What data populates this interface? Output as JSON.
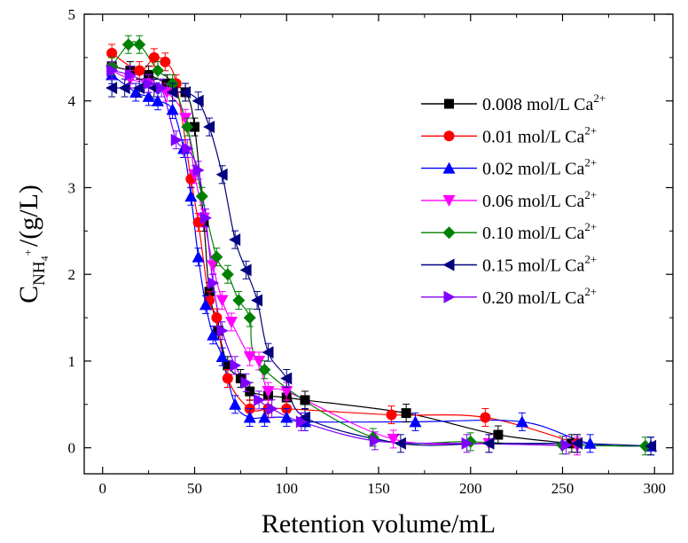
{
  "chart_data": {
    "type": "scatter",
    "xlabel": "Retention volume/mL",
    "ylabel": {
      "main": "C",
      "sub": "NH",
      "sub2": "4",
      "sup": "+",
      "unit": "/(g/L)"
    },
    "xlim": [
      -10,
      310
    ],
    "ylim": [
      -0.3,
      5
    ],
    "xticks": [
      "0",
      "50",
      "100",
      "150",
      "200",
      "250",
      "300"
    ],
    "yticks": [
      "0",
      "1",
      "2",
      "3",
      "4",
      "5"
    ],
    "legend_position": "right",
    "ion_label": "Ca",
    "ion_charge": "2+",
    "series": [
      {
        "name": "0.008 mol/L ",
        "color": "#000000",
        "marker": "square",
        "x": [
          5,
          15,
          25,
          35,
          45,
          50,
          55,
          58,
          63,
          68,
          75,
          80,
          90,
          100,
          110,
          165,
          215,
          255
        ],
        "y": [
          4.4,
          4.35,
          4.3,
          4.2,
          4.1,
          3.7,
          2.6,
          1.8,
          1.35,
          0.95,
          0.8,
          0.65,
          0.6,
          0.58,
          0.55,
          0.4,
          0.15,
          0.05
        ]
      },
      {
        "name": "0.01 mol/L ",
        "color": "#ff0000",
        "marker": "circle",
        "x": [
          5,
          20,
          28,
          34,
          40,
          48,
          52,
          58,
          62,
          68,
          80,
          90,
          100,
          157,
          208,
          258
        ],
        "y": [
          4.55,
          4.35,
          4.5,
          4.45,
          4.2,
          3.1,
          2.6,
          1.7,
          1.5,
          0.8,
          0.45,
          0.45,
          0.45,
          0.38,
          0.35,
          0.05
        ]
      },
      {
        "name": "0.02 mol/L ",
        "color": "#0000ff",
        "marker": "triangle-up",
        "x": [
          5,
          18,
          25,
          30,
          38,
          44,
          48,
          52,
          56,
          60,
          65,
          72,
          80,
          88,
          100,
          110,
          170,
          228,
          265,
          298
        ],
        "y": [
          4.3,
          4.1,
          4.05,
          4.0,
          3.9,
          3.45,
          2.9,
          2.2,
          1.65,
          1.3,
          1.05,
          0.5,
          0.35,
          0.35,
          0.35,
          0.3,
          0.3,
          0.3,
          0.05,
          0.02
        ]
      },
      {
        "name": "0.06 mol/L ",
        "color": "#ff00ff",
        "marker": "triangle-down",
        "x": [
          5,
          15,
          25,
          35,
          45,
          50,
          55,
          60,
          65,
          70,
          80,
          85,
          90,
          100,
          158,
          210,
          258
        ],
        "y": [
          4.35,
          4.25,
          4.2,
          4.1,
          3.8,
          3.15,
          2.65,
          2.1,
          1.7,
          1.45,
          1.05,
          1.0,
          0.65,
          0.65,
          0.1,
          0.05,
          0.02
        ]
      },
      {
        "name": "0.10 mol/L ",
        "color": "#008000",
        "marker": "diamond",
        "x": [
          5,
          14,
          20,
          30,
          38,
          46,
          54,
          62,
          68,
          74,
          80,
          88,
          147,
          200,
          250,
          295
        ],
        "y": [
          4.4,
          4.65,
          4.65,
          4.35,
          4.2,
          3.7,
          2.9,
          2.2,
          2.0,
          1.7,
          1.5,
          0.9,
          0.12,
          0.07,
          0.03,
          0.02
        ]
      },
      {
        "name": "0.15 mol/L ",
        "color": "#000080",
        "marker": "triangle-left",
        "x": [
          5,
          12,
          20,
          28,
          38,
          45,
          52,
          58,
          65,
          72,
          78,
          84,
          90,
          100,
          110,
          162,
          210,
          258,
          298
        ],
        "y": [
          4.15,
          4.15,
          4.15,
          4.15,
          4.1,
          4.1,
          4.0,
          3.7,
          3.15,
          2.4,
          2.05,
          1.7,
          1.1,
          0.8,
          0.35,
          0.05,
          0.05,
          0.05,
          0.02
        ]
      },
      {
        "name": "0.20 mol/L ",
        "color": "#8000ff",
        "marker": "triangle-right",
        "x": [
          5,
          15,
          25,
          32,
          40,
          46,
          52,
          56,
          60,
          65,
          72,
          78,
          85,
          92,
          108,
          148,
          198,
          252
        ],
        "y": [
          4.35,
          4.3,
          4.2,
          4.15,
          3.55,
          3.45,
          3.2,
          2.65,
          1.9,
          1.35,
          0.95,
          0.75,
          0.55,
          0.45,
          0.3,
          0.08,
          0.05,
          0.03
        ]
      }
    ]
  }
}
